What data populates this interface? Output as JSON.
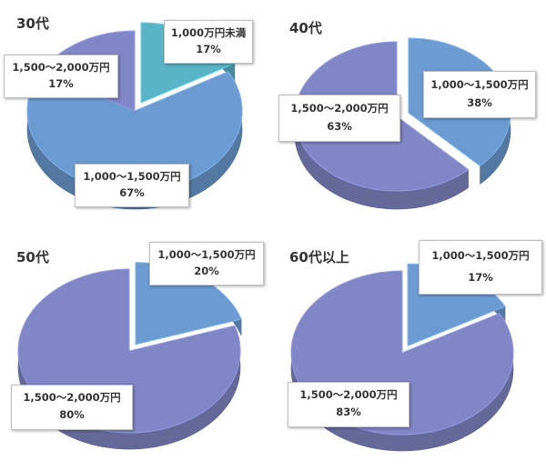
{
  "colors": {
    "slice_teal": "#5ab4c8",
    "slice_blue": "#6b9bd0",
    "slice_purple": "#8186c6"
  },
  "chart_data": [
    {
      "type": "pie",
      "title": "30代",
      "slices": [
        {
          "label": "1,000万円未満",
          "value": 17,
          "display": "17%",
          "color": "#5ab4c8",
          "exploded": true
        },
        {
          "label": "1,000～1,500万円",
          "value": 67,
          "display": "67%",
          "color": "#6b9bd0",
          "exploded": false
        },
        {
          "label": "1,500～2,000万円",
          "value": 17,
          "display": "17%",
          "color": "#8186c6",
          "exploded": false
        }
      ]
    },
    {
      "type": "pie",
      "title": "40代",
      "slices": [
        {
          "label": "1,000～1,500万円",
          "value": 38,
          "display": "38%",
          "color": "#6b9bd0",
          "exploded": true
        },
        {
          "label": "1,500～2,000万円",
          "value": 63,
          "display": "63%",
          "color": "#8186c6",
          "exploded": false
        }
      ]
    },
    {
      "type": "pie",
      "title": "50代",
      "slices": [
        {
          "label": "1,000～1,500万円",
          "value": 20,
          "display": "20%",
          "color": "#6b9bd0",
          "exploded": true
        },
        {
          "label": "1,500～2,000万円",
          "value": 80,
          "display": "80%",
          "color": "#8186c6",
          "exploded": false
        }
      ]
    },
    {
      "type": "pie",
      "title": "60代以上",
      "slices": [
        {
          "label": "1,000～1,500万円",
          "value": 17,
          "display": "17%",
          "color": "#6b9bd0",
          "exploded": true
        },
        {
          "label": "1,500～2,000万円",
          "value": 83,
          "display": "83%",
          "color": "#8186c6",
          "exploded": false
        }
      ]
    }
  ]
}
